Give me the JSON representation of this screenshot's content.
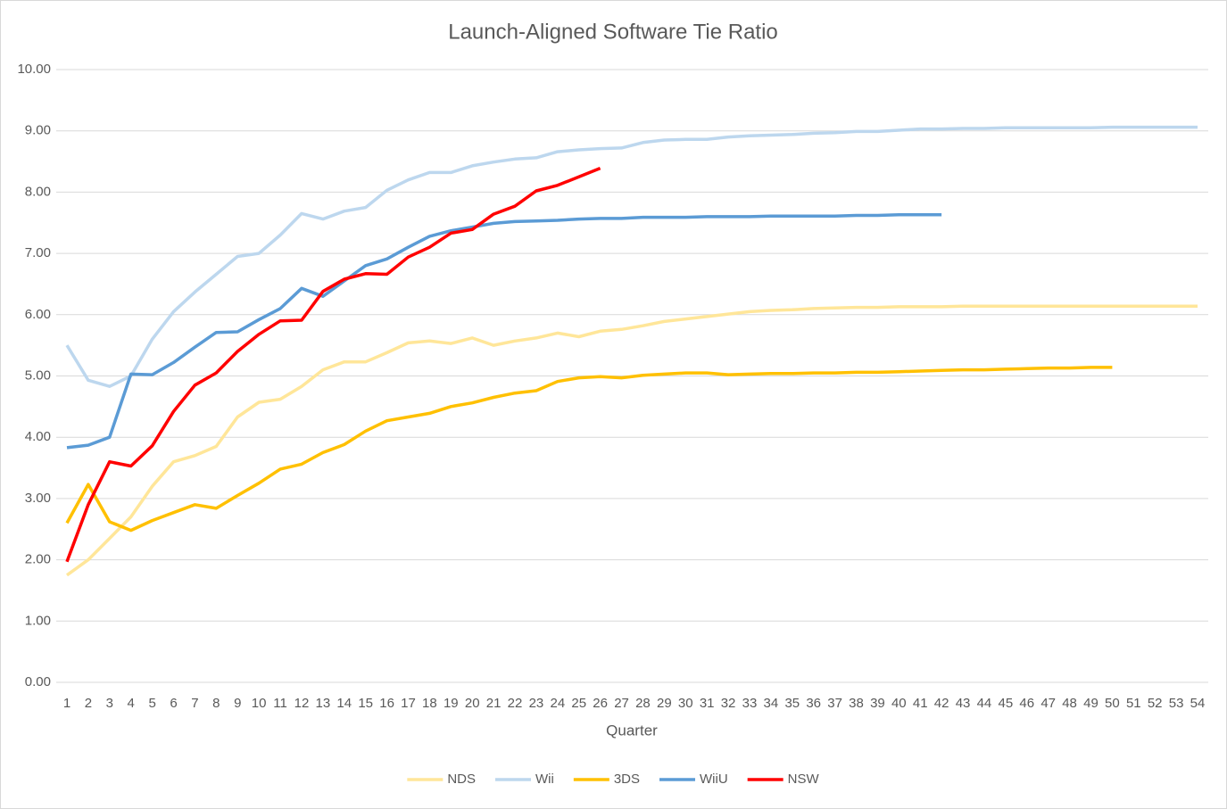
{
  "chart_data": {
    "type": "line",
    "title": "Launch-Aligned Software Tie Ratio",
    "x_label": "Quarter",
    "categories": [
      "1",
      "2",
      "3",
      "4",
      "5",
      "6",
      "7",
      "8",
      "9",
      "10",
      "11",
      "12",
      "13",
      "14",
      "15",
      "16",
      "17",
      "18",
      "19",
      "20",
      "21",
      "22",
      "23",
      "24",
      "25",
      "26",
      "27",
      "28",
      "29",
      "30",
      "31",
      "32",
      "33",
      "34",
      "35",
      "36",
      "37",
      "38",
      "39",
      "40",
      "41",
      "42",
      "43",
      "44",
      "45",
      "46",
      "47",
      "48",
      "49",
      "50",
      "51",
      "52",
      "53",
      "54"
    ],
    "ylim": [
      0,
      10
    ],
    "yticks": [
      {
        "value": 0,
        "label": "0.00"
      },
      {
        "value": 1,
        "label": "1.00"
      },
      {
        "value": 2,
        "label": "2.00"
      },
      {
        "value": 3,
        "label": "3.00"
      },
      {
        "value": 4,
        "label": "4.00"
      },
      {
        "value": 5,
        "label": "5.00"
      },
      {
        "value": 6,
        "label": "6.00"
      },
      {
        "value": 7,
        "label": "7.00"
      },
      {
        "value": 8,
        "label": "8.00"
      },
      {
        "value": 9,
        "label": "9.00"
      },
      {
        "value": 10,
        "label": "10.00"
      }
    ],
    "grid": true,
    "legend": "bottom",
    "series": [
      {
        "name": "NDS",
        "color": "#ffe699",
        "values": [
          1.75,
          2.0,
          2.35,
          2.7,
          3.2,
          3.6,
          3.7,
          3.85,
          4.33,
          4.57,
          4.62,
          4.83,
          5.1,
          5.23,
          5.23,
          5.38,
          5.54,
          5.57,
          5.53,
          5.62,
          5.5,
          5.57,
          5.62,
          5.7,
          5.64,
          5.73,
          5.76,
          5.82,
          5.89,
          5.93,
          5.97,
          6.01,
          6.05,
          6.07,
          6.08,
          6.1,
          6.11,
          6.12,
          6.12,
          6.13,
          6.13,
          6.13,
          6.14,
          6.14,
          6.14,
          6.14,
          6.14,
          6.14,
          6.14,
          6.14,
          6.14,
          6.14,
          6.14,
          6.14
        ]
      },
      {
        "name": "Wii",
        "color": "#bdd7ee",
        "values": [
          5.5,
          4.93,
          4.83,
          5.0,
          5.6,
          6.05,
          6.37,
          6.66,
          6.95,
          7.0,
          7.3,
          7.65,
          7.56,
          7.69,
          7.75,
          8.03,
          8.2,
          8.32,
          8.32,
          8.43,
          8.49,
          8.54,
          8.56,
          8.66,
          8.69,
          8.71,
          8.72,
          8.81,
          8.85,
          8.86,
          8.86,
          8.9,
          8.92,
          8.93,
          8.94,
          8.96,
          8.97,
          8.99,
          8.99,
          9.01,
          9.03,
          9.03,
          9.04,
          9.04,
          9.05,
          9.05,
          9.05,
          9.05,
          9.05,
          9.06,
          9.06,
          9.06,
          9.06,
          9.06
        ]
      },
      {
        "name": "3DS",
        "color": "#ffc000",
        "values": [
          2.6,
          3.23,
          2.62,
          2.48,
          2.64,
          2.77,
          2.9,
          2.84,
          3.05,
          3.25,
          3.48,
          3.56,
          3.75,
          3.88,
          4.1,
          4.27,
          4.33,
          4.39,
          4.5,
          4.56,
          4.65,
          4.72,
          4.76,
          4.91,
          4.97,
          4.99,
          4.97,
          5.01,
          5.03,
          5.05,
          5.05,
          5.02,
          5.03,
          5.04,
          5.04,
          5.05,
          5.05,
          5.06,
          5.06,
          5.07,
          5.08,
          5.09,
          5.1,
          5.1,
          5.11,
          5.12,
          5.13,
          5.13,
          5.14,
          5.14,
          null,
          null,
          null,
          null
        ]
      },
      {
        "name": "WiiU",
        "color": "#5b9bd5",
        "values": [
          3.83,
          3.87,
          4.0,
          5.03,
          5.02,
          5.22,
          5.47,
          5.71,
          5.72,
          5.92,
          6.1,
          6.43,
          6.3,
          6.55,
          6.8,
          6.91,
          7.1,
          7.28,
          7.37,
          7.43,
          7.49,
          7.52,
          7.53,
          7.54,
          7.56,
          7.57,
          7.57,
          7.59,
          7.59,
          7.59,
          7.6,
          7.6,
          7.6,
          7.61,
          7.61,
          7.61,
          7.61,
          7.62,
          7.62,
          7.63,
          7.63,
          7.63,
          null,
          null,
          null,
          null,
          null,
          null,
          null,
          null,
          null,
          null,
          null,
          null
        ]
      },
      {
        "name": "NSW",
        "color": "#ff0000",
        "values": [
          1.97,
          2.9,
          3.6,
          3.53,
          3.86,
          4.42,
          4.85,
          5.05,
          5.4,
          5.68,
          5.9,
          5.91,
          6.38,
          6.58,
          6.67,
          6.66,
          6.94,
          7.1,
          7.33,
          7.39,
          7.64,
          7.77,
          8.02,
          8.11,
          8.25,
          8.39,
          null,
          null,
          null,
          null,
          null,
          null,
          null,
          null,
          null,
          null,
          null,
          null,
          null,
          null,
          null,
          null,
          null,
          null,
          null,
          null,
          null,
          null,
          null,
          null,
          null,
          null,
          null,
          null
        ]
      }
    ]
  }
}
